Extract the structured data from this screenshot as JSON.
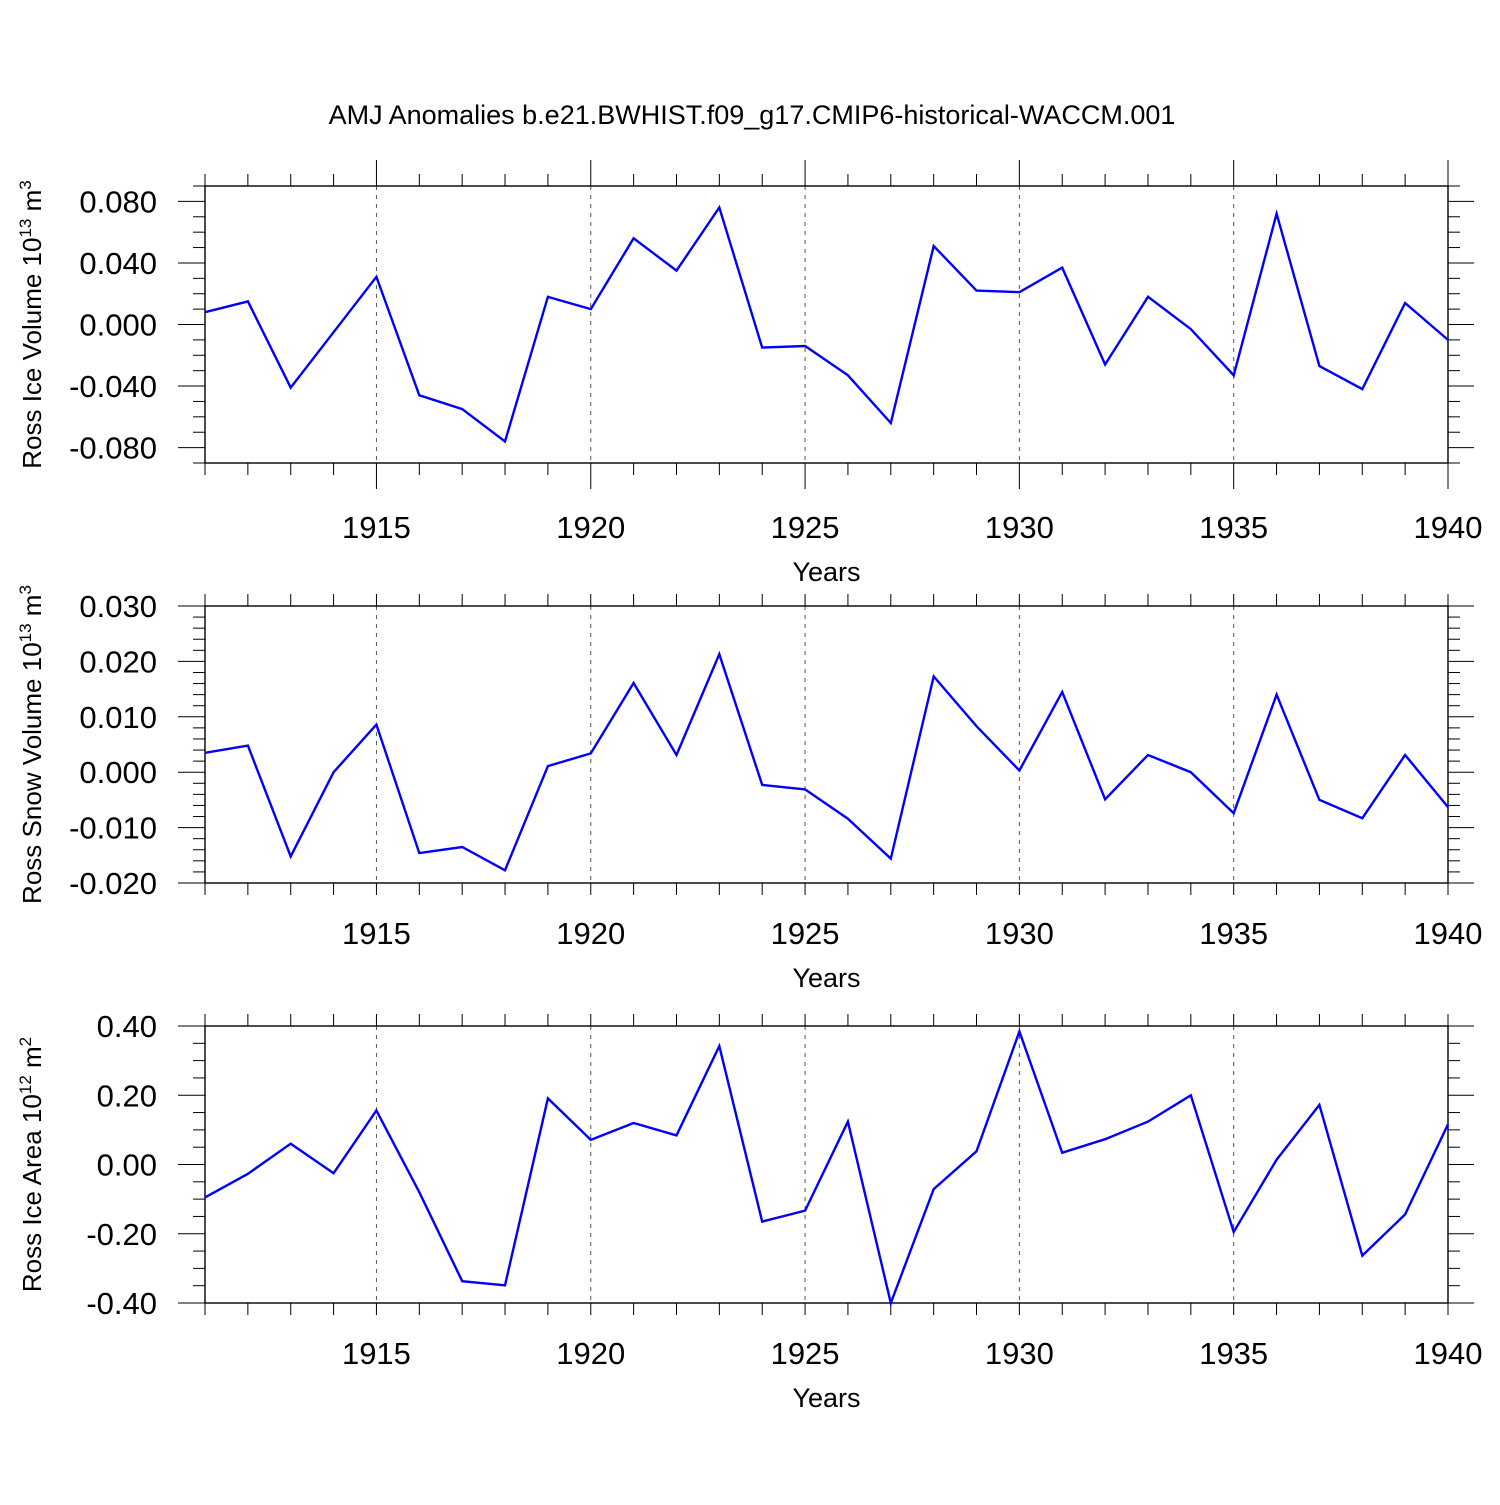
{
  "chart_data": {
    "type": "line",
    "title": "AMJ Anomalies b.e21.BWHIST.f09_g17.CMIP6-historical-WACCM.001",
    "line_color": "#0000ff",
    "panels": [
      {
        "id": "ice-volume",
        "ylabel": "Ross Ice Volume 10",
        "ylabel_exp": "13",
        "ylabel_unit": " m",
        "ylabel_unit_exp": "3",
        "xlabel": "Years",
        "ylim": [
          -0.09,
          0.09
        ],
        "yticks": [
          -0.08,
          -0.04,
          0.0,
          0.04,
          0.08
        ],
        "yticklabels": [
          "-0.080",
          "-0.040",
          "0.000",
          "0.040",
          "0.080"
        ],
        "yminor_step": 0.01,
        "xlim": [
          1911,
          1940
        ],
        "xticks": [
          1915,
          1920,
          1925,
          1930,
          1935,
          1940
        ],
        "xticklabels": [
          "1915",
          "1920",
          "1925",
          "1930",
          "1935",
          "1940"
        ],
        "x": [
          1911,
          1912,
          1913,
          1914,
          1915,
          1916,
          1917,
          1918,
          1919,
          1920,
          1921,
          1922,
          1923,
          1924,
          1925,
          1926,
          1927,
          1928,
          1929,
          1930,
          1931,
          1932,
          1933,
          1934,
          1935,
          1936,
          1937,
          1938,
          1939,
          1940
        ],
        "values": [
          0.008,
          0.015,
          -0.041,
          -0.005,
          0.031,
          -0.046,
          -0.055,
          -0.076,
          0.018,
          0.01,
          0.056,
          0.035,
          0.076,
          -0.015,
          -0.014,
          -0.033,
          -0.064,
          0.051,
          0.022,
          0.021,
          0.037,
          -0.026,
          0.018,
          -0.003,
          -0.033,
          0.072,
          -0.027,
          -0.042,
          0.014,
          -0.01
        ]
      },
      {
        "id": "snow-volume",
        "ylabel": "Ross Snow Volume 10",
        "ylabel_exp": "13",
        "ylabel_unit": " m",
        "ylabel_unit_exp": "3",
        "xlabel": "Years",
        "ylim": [
          -0.02,
          0.03
        ],
        "yticks": [
          -0.02,
          -0.01,
          0.0,
          0.01,
          0.02,
          0.03
        ],
        "yticklabels": [
          "-0.020",
          "-0.010",
          "0.000",
          "0.010",
          "0.020",
          "0.030"
        ],
        "yminor_step": 0.002,
        "xlim": [
          1911,
          1940
        ],
        "xticks": [
          1915,
          1920,
          1925,
          1930,
          1935,
          1940
        ],
        "xticklabels": [
          "1915",
          "1920",
          "1925",
          "1930",
          "1935",
          "1940"
        ],
        "x": [
          1911,
          1912,
          1913,
          1914,
          1915,
          1916,
          1917,
          1918,
          1919,
          1920,
          1921,
          1922,
          1923,
          1924,
          1925,
          1926,
          1927,
          1928,
          1929,
          1930,
          1931,
          1932,
          1933,
          1934,
          1935,
          1936,
          1937,
          1938,
          1939,
          1940
        ],
        "values": [
          0.0035,
          0.0048,
          -0.0152,
          0.0,
          0.0086,
          -0.0146,
          -0.0135,
          -0.0177,
          0.0011,
          0.0034,
          0.0161,
          0.0031,
          0.0213,
          -0.0023,
          -0.0031,
          -0.0084,
          -0.0156,
          0.0173,
          0.0083,
          0.0003,
          0.0145,
          -0.0049,
          0.0031,
          0.0,
          -0.0074,
          0.014,
          -0.005,
          -0.0083,
          0.0031,
          -0.0063
        ]
      },
      {
        "id": "ice-area",
        "ylabel": "Ross Ice Area 10",
        "ylabel_exp": "12",
        "ylabel_unit": " m",
        "ylabel_unit_exp": "2",
        "xlabel": "Years",
        "ylim": [
          -0.4,
          0.4
        ],
        "yticks": [
          -0.4,
          -0.2,
          0.0,
          0.2,
          0.4
        ],
        "yticklabels": [
          "-0.40",
          "-0.20",
          "0.00",
          "0.20",
          "0.40"
        ],
        "yminor_step": 0.05,
        "xlim": [
          1911,
          1940
        ],
        "xticks": [
          1915,
          1920,
          1925,
          1930,
          1935,
          1940
        ],
        "xticklabels": [
          "1915",
          "1920",
          "1925",
          "1930",
          "1935",
          "1940"
        ],
        "x": [
          1911,
          1912,
          1913,
          1914,
          1915,
          1916,
          1917,
          1918,
          1919,
          1920,
          1921,
          1922,
          1923,
          1924,
          1925,
          1926,
          1927,
          1928,
          1929,
          1930,
          1931,
          1932,
          1933,
          1934,
          1935,
          1936,
          1937,
          1938,
          1939,
          1940
        ],
        "values": [
          -0.095,
          -0.027,
          0.06,
          -0.025,
          0.156,
          -0.08,
          -0.337,
          -0.349,
          0.191,
          0.071,
          0.12,
          0.084,
          0.342,
          -0.165,
          -0.133,
          0.124,
          -0.4,
          -0.071,
          0.038,
          0.384,
          0.034,
          0.073,
          0.124,
          0.2,
          -0.195,
          0.014,
          0.172,
          -0.263,
          -0.144,
          0.116
        ]
      }
    ]
  }
}
